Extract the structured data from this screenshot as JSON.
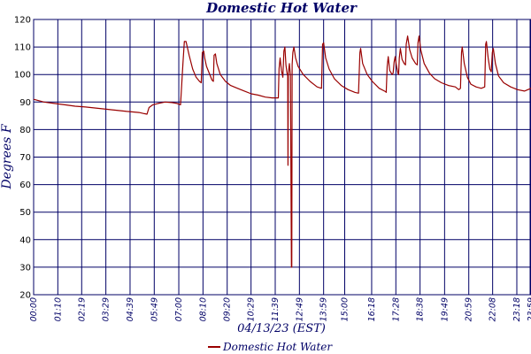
{
  "chart_data": {
    "type": "line",
    "title": "Domestic Hot Water",
    "xlabel": "04/13/23 (EST)",
    "ylabel": "Degrees F",
    "ylim": [
      20,
      120
    ],
    "yticks": [
      20,
      30,
      40,
      50,
      60,
      70,
      80,
      90,
      100,
      110,
      120
    ],
    "xlim": [
      "00:00",
      "23:59"
    ],
    "xticks": [
      "00:00",
      "01:10",
      "02:19",
      "03:29",
      "04:39",
      "05:49",
      "07:00",
      "08:10",
      "09:20",
      "10:29",
      "11:39",
      "12:49",
      "13:59",
      "15:00",
      "16:18",
      "17:28",
      "18:38",
      "19:49",
      "20:59",
      "22:08",
      "23:18",
      "23:59"
    ],
    "grid": true,
    "legend_position": "bottom-center",
    "series": [
      {
        "name": "Domestic Hot Water",
        "color": "#990000",
        "points": [
          [
            "00:00",
            91.0
          ],
          [
            "00:30",
            90.0
          ],
          [
            "01:00",
            89.5
          ],
          [
            "01:30",
            89.0
          ],
          [
            "02:00",
            88.5
          ],
          [
            "02:30",
            88.2
          ],
          [
            "03:00",
            87.8
          ],
          [
            "03:30",
            87.4
          ],
          [
            "04:00",
            87.0
          ],
          [
            "04:30",
            86.6
          ],
          [
            "05:05",
            86.2
          ],
          [
            "05:20",
            85.8
          ],
          [
            "05:28",
            85.6
          ],
          [
            "05:34",
            88.0
          ],
          [
            "05:45",
            89.0
          ],
          [
            "06:00",
            89.5
          ],
          [
            "06:20",
            90.0
          ],
          [
            "06:40",
            89.8
          ],
          [
            "06:55",
            89.5
          ],
          [
            "07:05",
            89.0
          ],
          [
            "07:12",
            104.0
          ],
          [
            "07:16",
            112.0
          ],
          [
            "07:21",
            112.0
          ],
          [
            "07:30",
            107.0
          ],
          [
            "07:40",
            102.0
          ],
          [
            "07:50",
            99.0
          ],
          [
            "08:00",
            97.5
          ],
          [
            "08:05",
            97.0
          ],
          [
            "08:08",
            108.0
          ],
          [
            "08:12",
            108.5
          ],
          [
            "08:15",
            106.0
          ],
          [
            "08:20",
            103.0
          ],
          [
            "08:28",
            100.5
          ],
          [
            "08:36",
            98.0
          ],
          [
            "08:40",
            97.5
          ],
          [
            "08:42",
            107.0
          ],
          [
            "08:46",
            107.5
          ],
          [
            "08:50",
            104.0
          ],
          [
            "09:00",
            100.0
          ],
          [
            "09:15",
            97.5
          ],
          [
            "09:30",
            96.0
          ],
          [
            "09:50",
            95.0
          ],
          [
            "10:10",
            94.0
          ],
          [
            "10:30",
            93.0
          ],
          [
            "10:50",
            92.5
          ],
          [
            "11:10",
            91.8
          ],
          [
            "11:30",
            91.5
          ],
          [
            "11:48",
            91.5
          ],
          [
            "11:50",
            102.0
          ],
          [
            "11:53",
            106.0
          ],
          [
            "11:57",
            101.5
          ],
          [
            "12:01",
            99.0
          ],
          [
            "12:04",
            108.5
          ],
          [
            "12:07",
            110.0
          ],
          [
            "12:10",
            103.5
          ],
          [
            "12:13",
            100.5
          ],
          [
            "12:15",
            99.5
          ],
          [
            "12:16",
            67.0
          ],
          [
            "12:17",
            100.0
          ],
          [
            "12:18",
            101.5
          ],
          [
            "12:20",
            104.0
          ],
          [
            "12:23",
            99.5
          ],
          [
            "12:26",
            30.0
          ],
          [
            "12:27",
            30.0
          ],
          [
            "12:28",
            103.5
          ],
          [
            "12:30",
            108.0
          ],
          [
            "12:33",
            110.0
          ],
          [
            "12:38",
            106.0
          ],
          [
            "12:45",
            103.0
          ],
          [
            "13:00",
            100.0
          ],
          [
            "13:20",
            97.5
          ],
          [
            "13:40",
            95.5
          ],
          [
            "13:53",
            95.0
          ],
          [
            "13:56",
            111.0
          ],
          [
            "13:59",
            111.5
          ],
          [
            "14:05",
            106.0
          ],
          [
            "14:15",
            102.0
          ],
          [
            "14:30",
            98.5
          ],
          [
            "14:50",
            96.0
          ],
          [
            "15:10",
            94.5
          ],
          [
            "15:30",
            93.5
          ],
          [
            "15:40",
            93.2
          ],
          [
            "15:44",
            108.0
          ],
          [
            "15:46",
            109.5
          ],
          [
            "15:52",
            104.0
          ],
          [
            "16:05",
            100.0
          ],
          [
            "16:20",
            97.5
          ],
          [
            "16:40",
            95.0
          ],
          [
            "16:58",
            93.8
          ],
          [
            "17:00",
            93.5
          ],
          [
            "17:03",
            103.0
          ],
          [
            "17:06",
            106.5
          ],
          [
            "17:10",
            101.5
          ],
          [
            "17:17",
            100.0
          ],
          [
            "17:20",
            100.5
          ],
          [
            "17:23",
            104.5
          ],
          [
            "17:26",
            106.5
          ],
          [
            "17:30",
            103.0
          ],
          [
            "17:34",
            100.5
          ],
          [
            "17:36",
            100.0
          ],
          [
            "17:38",
            106.0
          ],
          [
            "17:41",
            109.5
          ],
          [
            "17:46",
            105.5
          ],
          [
            "17:52",
            104.0
          ],
          [
            "17:56",
            103.5
          ],
          [
            "17:58",
            111.0
          ],
          [
            "18:02",
            114.0
          ],
          [
            "18:08",
            109.0
          ],
          [
            "18:15",
            106.0
          ],
          [
            "18:25",
            104.0
          ],
          [
            "18:30",
            103.5
          ],
          [
            "18:32",
            111.5
          ],
          [
            "18:35",
            114.0
          ],
          [
            "18:40",
            109.0
          ],
          [
            "18:50",
            104.0
          ],
          [
            "19:05",
            100.5
          ],
          [
            "19:20",
            98.5
          ],
          [
            "19:40",
            97.0
          ],
          [
            "20:00",
            96.0
          ],
          [
            "20:20",
            95.5
          ],
          [
            "20:30",
            94.5
          ],
          [
            "20:35",
            95.0
          ],
          [
            "20:38",
            108.0
          ],
          [
            "20:40",
            110.0
          ],
          [
            "20:46",
            104.0
          ],
          [
            "20:55",
            99.0
          ],
          [
            "21:05",
            96.5
          ],
          [
            "21:20",
            95.5
          ],
          [
            "21:35",
            95.0
          ],
          [
            "21:45",
            95.5
          ],
          [
            "21:48",
            111.0
          ],
          [
            "21:50",
            112.0
          ],
          [
            "21:55",
            106.0
          ],
          [
            "22:00",
            102.0
          ],
          [
            "22:04",
            101.0
          ],
          [
            "22:07",
            108.0
          ],
          [
            "22:10",
            109.5
          ],
          [
            "22:16",
            104.0
          ],
          [
            "22:25",
            99.5
          ],
          [
            "22:40",
            97.0
          ],
          [
            "23:00",
            95.5
          ],
          [
            "23:20",
            94.5
          ],
          [
            "23:40",
            94.0
          ],
          [
            "23:59",
            95.0
          ]
        ]
      }
    ]
  }
}
